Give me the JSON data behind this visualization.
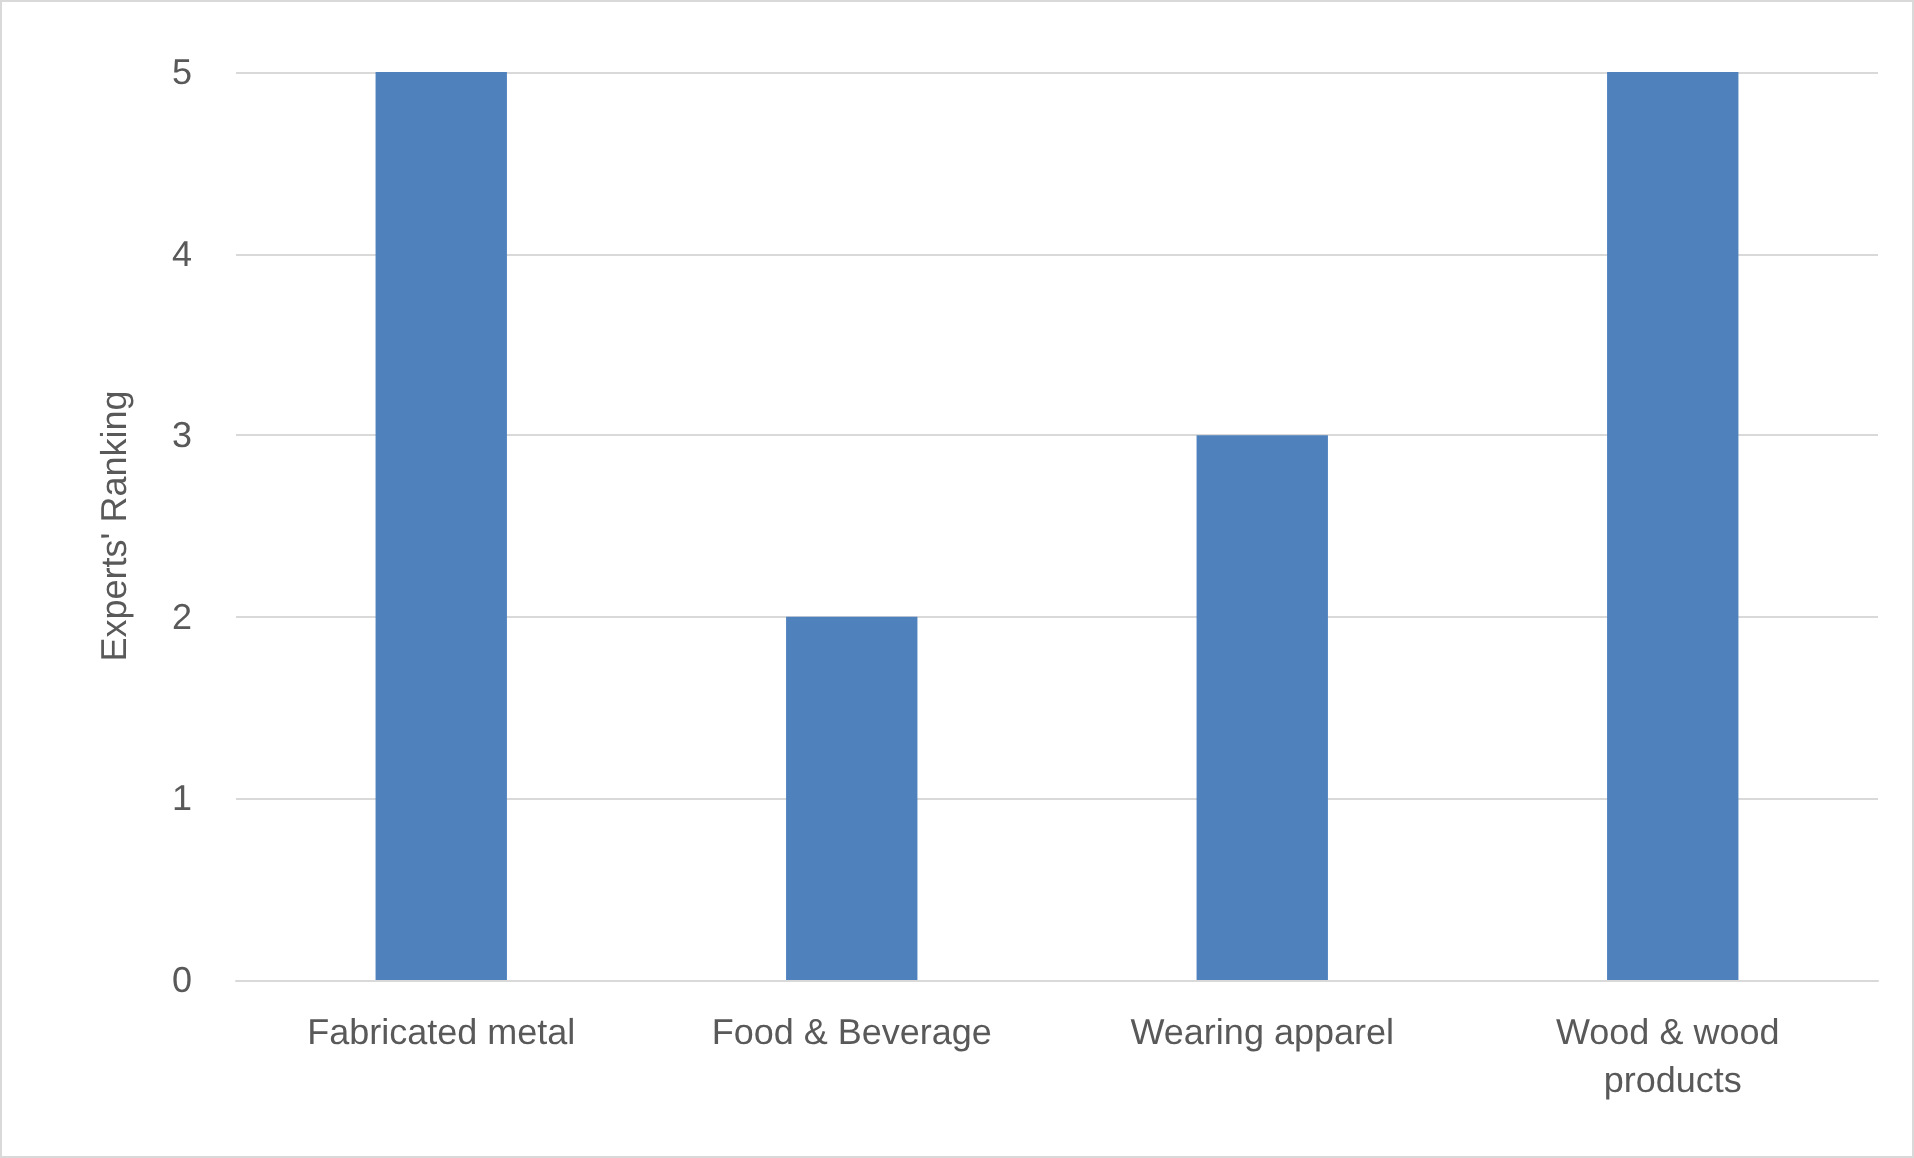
{
  "chart_data": {
    "type": "bar",
    "ylabel": "Experts' Ranking",
    "categories": [
      "Fabricated metal",
      "Food & Beverage",
      "Wearing apparel",
      "Wood & wood products"
    ],
    "values": [
      5,
      2,
      3,
      5
    ],
    "color": "#4f81bd",
    "ylim": [
      0,
      5
    ],
    "yticks": [
      0,
      1,
      2,
      3,
      4,
      5
    ],
    "grid": "y"
  }
}
